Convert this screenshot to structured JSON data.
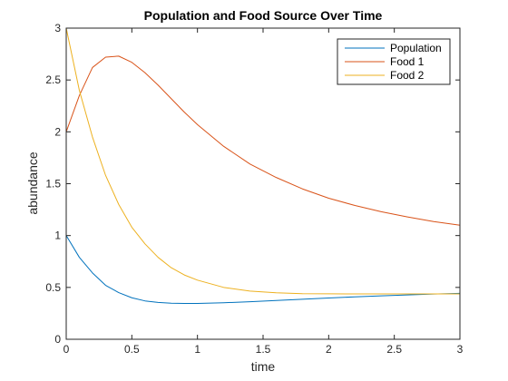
{
  "chart_data": {
    "type": "line",
    "title": "Population and Food Source Over Time",
    "xlabel": "time",
    "ylabel": "abundance",
    "xlim": [
      0,
      3
    ],
    "ylim": [
      0,
      3
    ],
    "xticks": [
      0,
      0.5,
      1,
      1.5,
      2,
      2.5,
      3
    ],
    "xtick_labels": [
      "0",
      "0.5",
      "1",
      "1.5",
      "2",
      "2.5",
      "3"
    ],
    "yticks": [
      0,
      0.5,
      1,
      1.5,
      2,
      2.5,
      3
    ],
    "ytick_labels": [
      "0",
      "0.5",
      "1",
      "1.5",
      "2",
      "2.5",
      "3"
    ],
    "grid": false,
    "legend_position": "top-right",
    "series": [
      {
        "name": "Population",
        "color": "#0072BD",
        "x": [
          0,
          0.1,
          0.2,
          0.3,
          0.4,
          0.5,
          0.6,
          0.7,
          0.8,
          0.9,
          1.0,
          1.2,
          1.4,
          1.6,
          1.8,
          2.0,
          2.2,
          2.4,
          2.6,
          2.8,
          3.0
        ],
        "y": [
          1.0,
          0.79,
          0.64,
          0.52,
          0.45,
          0.4,
          0.37,
          0.355,
          0.348,
          0.345,
          0.345,
          0.352,
          0.362,
          0.374,
          0.386,
          0.398,
          0.409,
          0.419,
          0.428,
          0.436,
          0.443
        ]
      },
      {
        "name": "Food 1",
        "color": "#D95319",
        "x": [
          0,
          0.1,
          0.2,
          0.3,
          0.4,
          0.5,
          0.6,
          0.7,
          0.8,
          0.9,
          1.0,
          1.2,
          1.4,
          1.6,
          1.8,
          2.0,
          2.2,
          2.4,
          2.6,
          2.8,
          3.0
        ],
        "y": [
          2.0,
          2.35,
          2.62,
          2.72,
          2.73,
          2.67,
          2.57,
          2.45,
          2.32,
          2.19,
          2.07,
          1.86,
          1.69,
          1.56,
          1.45,
          1.36,
          1.29,
          1.23,
          1.18,
          1.135,
          1.1
        ]
      },
      {
        "name": "Food 2",
        "color": "#EDB120",
        "x": [
          0,
          0.1,
          0.2,
          0.3,
          0.4,
          0.5,
          0.6,
          0.7,
          0.8,
          0.9,
          1.0,
          1.2,
          1.4,
          1.6,
          1.8,
          2.0,
          2.2,
          2.4,
          2.6,
          2.8,
          3.0
        ],
        "y": [
          3.0,
          2.4,
          1.95,
          1.58,
          1.3,
          1.08,
          0.92,
          0.79,
          0.69,
          0.62,
          0.57,
          0.5,
          0.465,
          0.448,
          0.44,
          0.438,
          0.437,
          0.437,
          0.437,
          0.437,
          0.437
        ]
      }
    ]
  }
}
